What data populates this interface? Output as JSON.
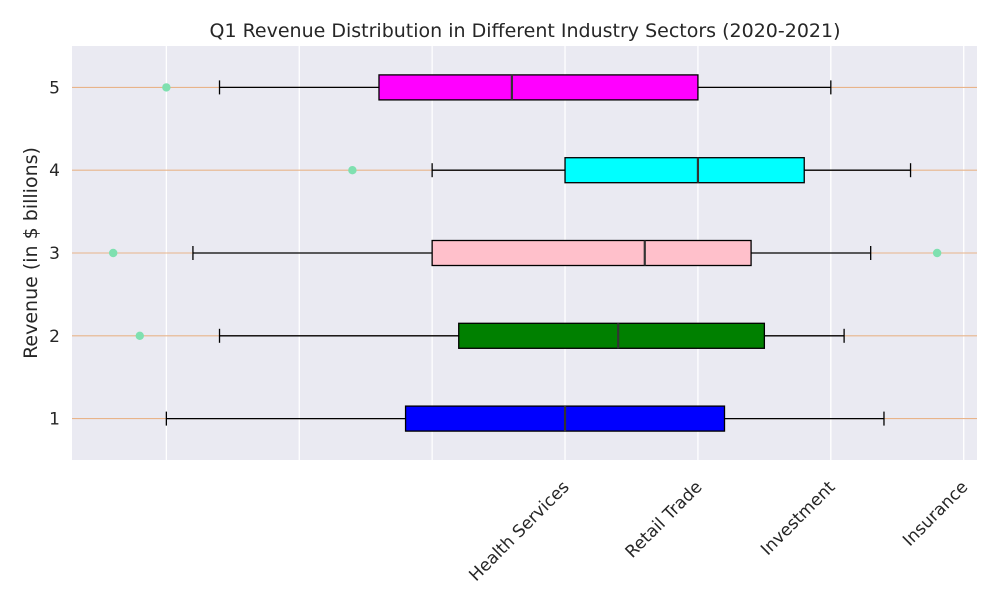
{
  "chart_data": {
    "type": "boxplot",
    "orientation": "horizontal",
    "title": "Q1 Revenue Distribution in Different Industry Sectors (2020-2021)",
    "ylabel": "Revenue (in $ billions)",
    "xlabel": "",
    "categories": [
      "1",
      "2",
      "3",
      "4",
      "5"
    ],
    "x_ticks": [
      5,
      10,
      15,
      20,
      25,
      30,
      35
    ],
    "x_tick_labels": [
      "",
      "",
      "",
      "Health Services",
      "Retail Trade",
      "Investment",
      "Insurance"
    ],
    "xlim": [
      1.45,
      35.5
    ],
    "ylim": [
      0.5,
      5.5
    ],
    "grid": true,
    "series": [
      {
        "min": 5,
        "q1": 14,
        "median": 20,
        "q3": 26,
        "max": 32,
        "outliers": [],
        "color": "#0000ff"
      },
      {
        "min": 7,
        "q1": 16,
        "median": 22,
        "q3": 27.5,
        "max": 30.5,
        "outliers": [
          4
        ],
        "color": "#008000"
      },
      {
        "min": 6,
        "q1": 15,
        "median": 23,
        "q3": 27,
        "max": 31.5,
        "outliers": [
          3,
          34
        ],
        "color": "#ffc0cb"
      },
      {
        "min": 15,
        "q1": 20,
        "median": 25,
        "q3": 29,
        "max": 33,
        "outliers": [
          12
        ],
        "color": "#00ffff"
      },
      {
        "min": 7,
        "q1": 13,
        "median": 18,
        "q3": 25,
        "max": 30,
        "outliers": [
          5
        ],
        "color": "#ff00ff"
      }
    ],
    "outlier_color": "#7fe0b0",
    "whisker_line_color": "#e8b48a"
  }
}
